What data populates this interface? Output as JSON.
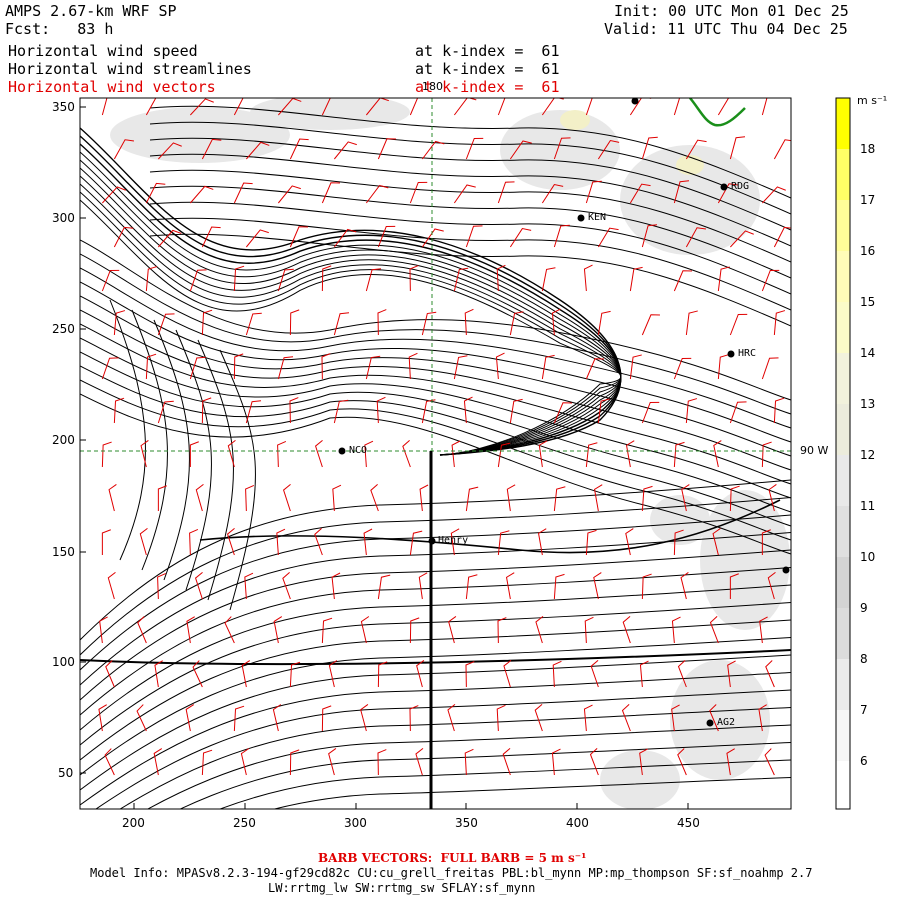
{
  "header": {
    "model_title": "AMPS 2.67-km WRF SP",
    "forecast": "Fcst:   83 h",
    "init": "Init: 00 UTC Mon 01 Dec 25",
    "valid": "Valid: 11 UTC Thu 04 Dec 25"
  },
  "fields": [
    {
      "name": "Horizontal wind speed",
      "level": "at k-index =  61",
      "color": "#000000"
    },
    {
      "name": "Horizontal wind streamlines",
      "level": "at k-index =  61",
      "color": "#000000"
    },
    {
      "name": "Horizontal wind vectors",
      "level": "at k-index =  61",
      "color": "#e00000"
    }
  ],
  "axes": {
    "x_ticks": [
      "200",
      "250",
      "300",
      "350",
      "400",
      "450"
    ],
    "y_ticks": [
      "350",
      "300",
      "250",
      "200",
      "150",
      "100",
      "50"
    ]
  },
  "overlays": {
    "meridian_label": "180",
    "parallel_label": "90 W",
    "accent_red": "#e00000",
    "grid_color": "#2e8b2e"
  },
  "stations": [
    {
      "id": "station-rdg",
      "label": "RDG"
    },
    {
      "id": "station-ken",
      "label": "KEN"
    },
    {
      "id": "station-hrc",
      "label": "HRC"
    },
    {
      "id": "station-nco",
      "label": "NCO"
    },
    {
      "id": "station-henry",
      "label": "Henry"
    },
    {
      "id": "station-ag2",
      "label": "AG2"
    }
  ],
  "colorbar": {
    "units": "m s⁻¹",
    "ticks": [
      "18",
      "17",
      "16",
      "15",
      "14",
      "13",
      "12",
      "11",
      "10",
      "9",
      "8",
      "7",
      "6"
    ]
  },
  "footer": {
    "barb_note": "BARB VECTORS:  FULL BARB = 5 m s⁻¹",
    "model_info_1": "Model Info: MPASv8.2.3-194-gf29cd82c CU:cu_grell_freitas PBL:bl_mynn MP:mp_thompson SF:sf_noahmp 2.7",
    "model_info_2": "LW:rrtmg_lw SW:rrtmg_sw SFLAY:sf_mynn"
  }
}
